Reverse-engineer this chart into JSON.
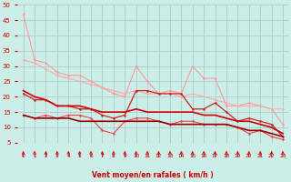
{
  "background_color": "#cceee8",
  "grid_color": "#aacccc",
  "xlabel": "Vent moyen/en rafales ( km/h )",
  "xlim": [
    -0.5,
    23.5
  ],
  "ylim": [
    5,
    50
  ],
  "yticks": [
    5,
    10,
    15,
    20,
    25,
    30,
    35,
    40,
    45,
    50
  ],
  "xticks": [
    0,
    1,
    2,
    3,
    4,
    5,
    6,
    7,
    8,
    9,
    10,
    11,
    12,
    13,
    14,
    15,
    16,
    17,
    18,
    19,
    20,
    21,
    22,
    23
  ],
  "series": [
    {
      "x": [
        0,
        1,
        2,
        3,
        4,
        5,
        6,
        7,
        8,
        9,
        10,
        11,
        12,
        13,
        14,
        15,
        16,
        17,
        18,
        19,
        20,
        21,
        22,
        23
      ],
      "y": [
        47,
        32,
        31,
        28,
        27,
        27,
        25,
        23,
        21,
        20,
        30,
        25,
        21,
        22,
        21,
        30,
        26,
        26,
        17,
        17,
        18,
        17,
        16,
        11
      ],
      "color": "#ff9999",
      "marker": "o",
      "lw": 0.8
    },
    {
      "x": [
        0,
        1,
        2,
        3,
        4,
        5,
        6,
        7,
        8,
        9,
        10,
        11,
        12,
        13,
        14,
        15,
        16,
        17,
        18,
        19,
        20,
        21,
        22,
        23
      ],
      "y": [
        32,
        31,
        29,
        27,
        26,
        25,
        24,
        23,
        22,
        21,
        22,
        21,
        21,
        21,
        20,
        21,
        20,
        19,
        18,
        17,
        17,
        17,
        16,
        16
      ],
      "color": "#ffaaaa",
      "marker": "o",
      "lw": 0.8
    },
    {
      "x": [
        0,
        1,
        2,
        3,
        4,
        5,
        6,
        7,
        8,
        9,
        10,
        11,
        12,
        13,
        14,
        15,
        16,
        17,
        18,
        19,
        20,
        21,
        22,
        23
      ],
      "y": [
        21,
        19,
        19,
        17,
        17,
        16,
        16,
        14,
        13,
        14,
        22,
        22,
        21,
        21,
        21,
        16,
        16,
        18,
        15,
        12,
        13,
        12,
        11,
        7
      ],
      "color": "#cc2222",
      "marker": "o",
      "lw": 0.9
    },
    {
      "x": [
        0,
        1,
        2,
        3,
        4,
        5,
        6,
        7,
        8,
        9,
        10,
        11,
        12,
        13,
        14,
        15,
        16,
        17,
        18,
        19,
        20,
        21,
        22,
        23
      ],
      "y": [
        14,
        13,
        14,
        13,
        14,
        14,
        13,
        9,
        8,
        12,
        13,
        13,
        12,
        11,
        12,
        12,
        11,
        11,
        11,
        10,
        8,
        9,
        7,
        6
      ],
      "color": "#ee4444",
      "marker": "o",
      "lw": 0.8
    },
    {
      "x": [
        0,
        1,
        2,
        3,
        4,
        5,
        6,
        7,
        8,
        9,
        10,
        11,
        12,
        13,
        14,
        15,
        16,
        17,
        18,
        19,
        20,
        21,
        22,
        23
      ],
      "y": [
        22,
        20,
        19,
        17,
        17,
        17,
        16,
        15,
        15,
        15,
        16,
        15,
        15,
        15,
        15,
        15,
        14,
        14,
        13,
        12,
        12,
        11,
        10,
        8
      ],
      "color": "#cc0000",
      "marker": null,
      "lw": 1.2
    },
    {
      "x": [
        0,
        1,
        2,
        3,
        4,
        5,
        6,
        7,
        8,
        9,
        10,
        11,
        12,
        13,
        14,
        15,
        16,
        17,
        18,
        19,
        20,
        21,
        22,
        23
      ],
      "y": [
        14,
        13,
        13,
        13,
        13,
        12,
        12,
        12,
        12,
        12,
        12,
        12,
        12,
        11,
        11,
        11,
        11,
        11,
        11,
        10,
        9,
        9,
        8,
        7
      ],
      "color": "#990000",
      "marker": null,
      "lw": 1.2
    }
  ],
  "arrow_color": "#cc0000",
  "xlabel_color": "#cc0000",
  "tick_color": "#cc0000",
  "marker_size": 1.8
}
